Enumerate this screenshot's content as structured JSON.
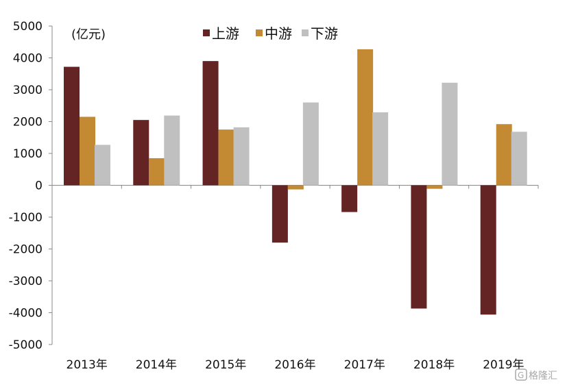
{
  "chart_data": {
    "type": "bar",
    "unit_label": "(亿元)",
    "categories": [
      "2013年",
      "2014年",
      "2015年",
      "2016年",
      "2017年",
      "2018年",
      "2019年"
    ],
    "series": [
      {
        "name": "上游",
        "color": "#632423",
        "values": [
          3720,
          2050,
          3900,
          -1800,
          -840,
          -3870,
          -4060
        ]
      },
      {
        "name": "中游",
        "color": "#C48A33",
        "values": [
          2150,
          850,
          1750,
          -130,
          4270,
          -110,
          1920
        ]
      },
      {
        "name": "下游",
        "color": "#C0C0C0",
        "values": [
          1270,
          2190,
          1820,
          2600,
          2290,
          3220,
          1680
        ]
      }
    ],
    "ylim": [
      -5000,
      5000
    ],
    "yticks": [
      "5000",
      "4000",
      "3000",
      "2000",
      "1000",
      "0",
      "-1000",
      "-2000",
      "-3000",
      "-4000",
      "-5000"
    ],
    "legend_position": "top-center",
    "grid": false
  },
  "watermark": {
    "text": "格隆汇"
  }
}
